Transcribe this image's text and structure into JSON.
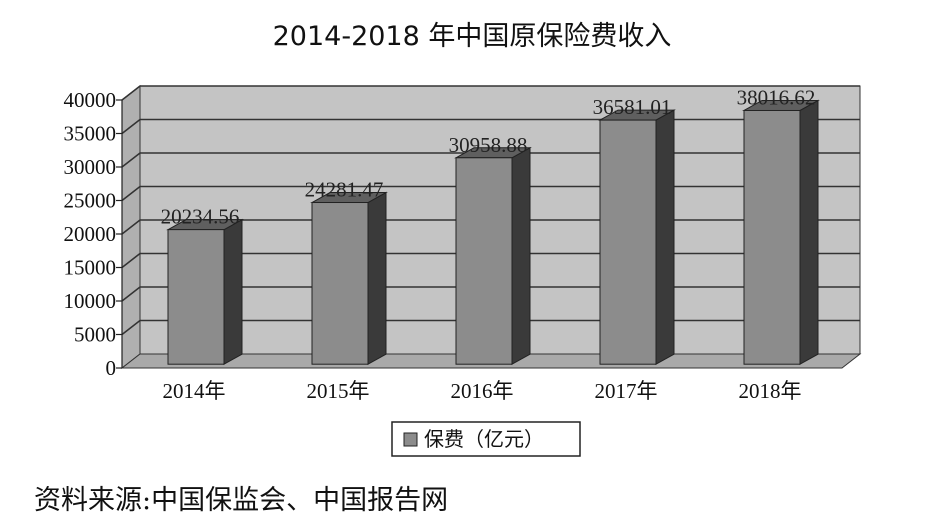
{
  "chart_data": {
    "type": "bar",
    "title": "2014-2018 年中国原保险费收入",
    "categories": [
      "2014年",
      "2015年",
      "2016年",
      "2017年",
      "2018年"
    ],
    "series": [
      {
        "name": "保费（亿元）",
        "values": [
          20234.56,
          24281.47,
          30958.88,
          36581.01,
          38016.62
        ]
      }
    ],
    "data_labels": [
      "20234.56",
      "24281.47",
      "30958.88",
      "36581.01",
      "38016.62"
    ],
    "ylim": [
      0,
      40000
    ],
    "yticks": [
      0,
      5000,
      10000,
      15000,
      20000,
      25000,
      30000,
      35000,
      40000
    ],
    "grid": true,
    "legend_position": "bottom",
    "colors": {
      "bar_front": "#8c8c8c",
      "bar_side": "#3a3a3a",
      "bar_top": "#5f5f5f",
      "wall": "#c4c4c4",
      "floor": "#a9a9a9",
      "grid": "#333333"
    }
  },
  "source_note": "资料来源:中国保监会、中国报告网"
}
